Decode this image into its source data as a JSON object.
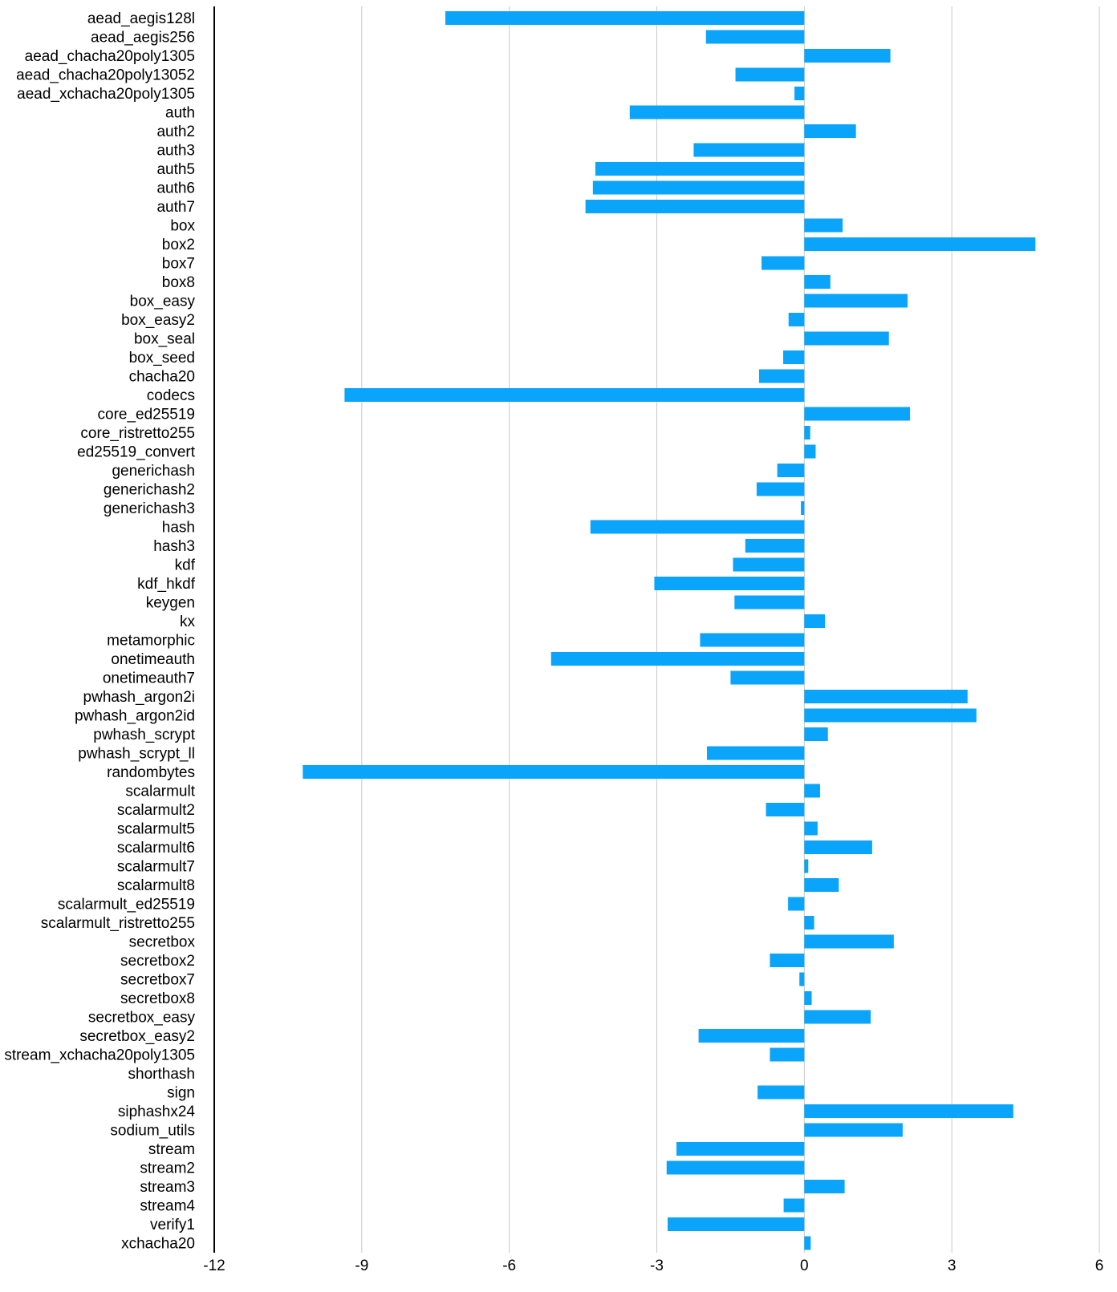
{
  "colors": {
    "bar": "#0aa4fa",
    "grid": "#c8c8c8",
    "axis": "#000000",
    "text": "#000000"
  },
  "chart_data": {
    "type": "bar",
    "orientation": "horizontal",
    "title": "",
    "xlabel": "",
    "ylabel": "",
    "grid": true,
    "xlim": [
      -12,
      6
    ],
    "xticks": [
      -12,
      -9,
      -6,
      -3,
      0,
      3,
      6
    ],
    "categories": [
      "aead_aegis128l",
      "aead_aegis256",
      "aead_chacha20poly1305",
      "aead_chacha20poly13052",
      "aead_xchacha20poly1305",
      "auth",
      "auth2",
      "auth3",
      "auth5",
      "auth6",
      "auth7",
      "box",
      "box2",
      "box7",
      "box8",
      "box_easy",
      "box_easy2",
      "box_seal",
      "box_seed",
      "chacha20",
      "codecs",
      "core_ed25519",
      "core_ristretto255",
      "ed25519_convert",
      "generichash",
      "generichash2",
      "generichash3",
      "hash",
      "hash3",
      "kdf",
      "kdf_hkdf",
      "keygen",
      "kx",
      "metamorphic",
      "onetimeauth",
      "onetimeauth7",
      "pwhash_argon2i",
      "pwhash_argon2id",
      "pwhash_scrypt",
      "pwhash_scrypt_ll",
      "randombytes",
      "scalarmult",
      "scalarmult2",
      "scalarmult5",
      "scalarmult6",
      "scalarmult7",
      "scalarmult8",
      "scalarmult_ed25519",
      "scalarmult_ristretto255",
      "secretbox",
      "secretbox2",
      "secretbox7",
      "secretbox8",
      "secretbox_easy",
      "secretbox_easy2",
      "stream_xchacha20poly1305",
      "shorthash",
      "sign",
      "siphashx24",
      "sodium_utils",
      "stream",
      "stream2",
      "stream3",
      "stream4",
      "verify1",
      "xchacha20"
    ],
    "values": [
      -7.3,
      -2.0,
      1.75,
      -1.4,
      -0.2,
      -3.55,
      1.05,
      -2.25,
      -4.25,
      -4.3,
      -4.45,
      0.78,
      4.7,
      -0.87,
      0.53,
      2.1,
      -0.32,
      1.72,
      -0.43,
      -0.92,
      -9.35,
      2.15,
      0.12,
      0.23,
      -0.55,
      -0.97,
      -0.07,
      -4.35,
      -1.2,
      -1.45,
      -3.05,
      -1.42,
      0.42,
      -2.12,
      -5.15,
      -1.5,
      3.32,
      3.5,
      0.48,
      -1.98,
      -10.2,
      0.32,
      -0.78,
      0.27,
      1.38,
      0.08,
      0.7,
      -0.33,
      0.2,
      1.82,
      -0.7,
      -0.1,
      0.15,
      1.35,
      -2.15,
      -0.7,
      0.0,
      -0.95,
      4.25,
      2.0,
      -2.6,
      -2.8,
      0.82,
      -0.42,
      -2.78,
      0.13
    ]
  }
}
